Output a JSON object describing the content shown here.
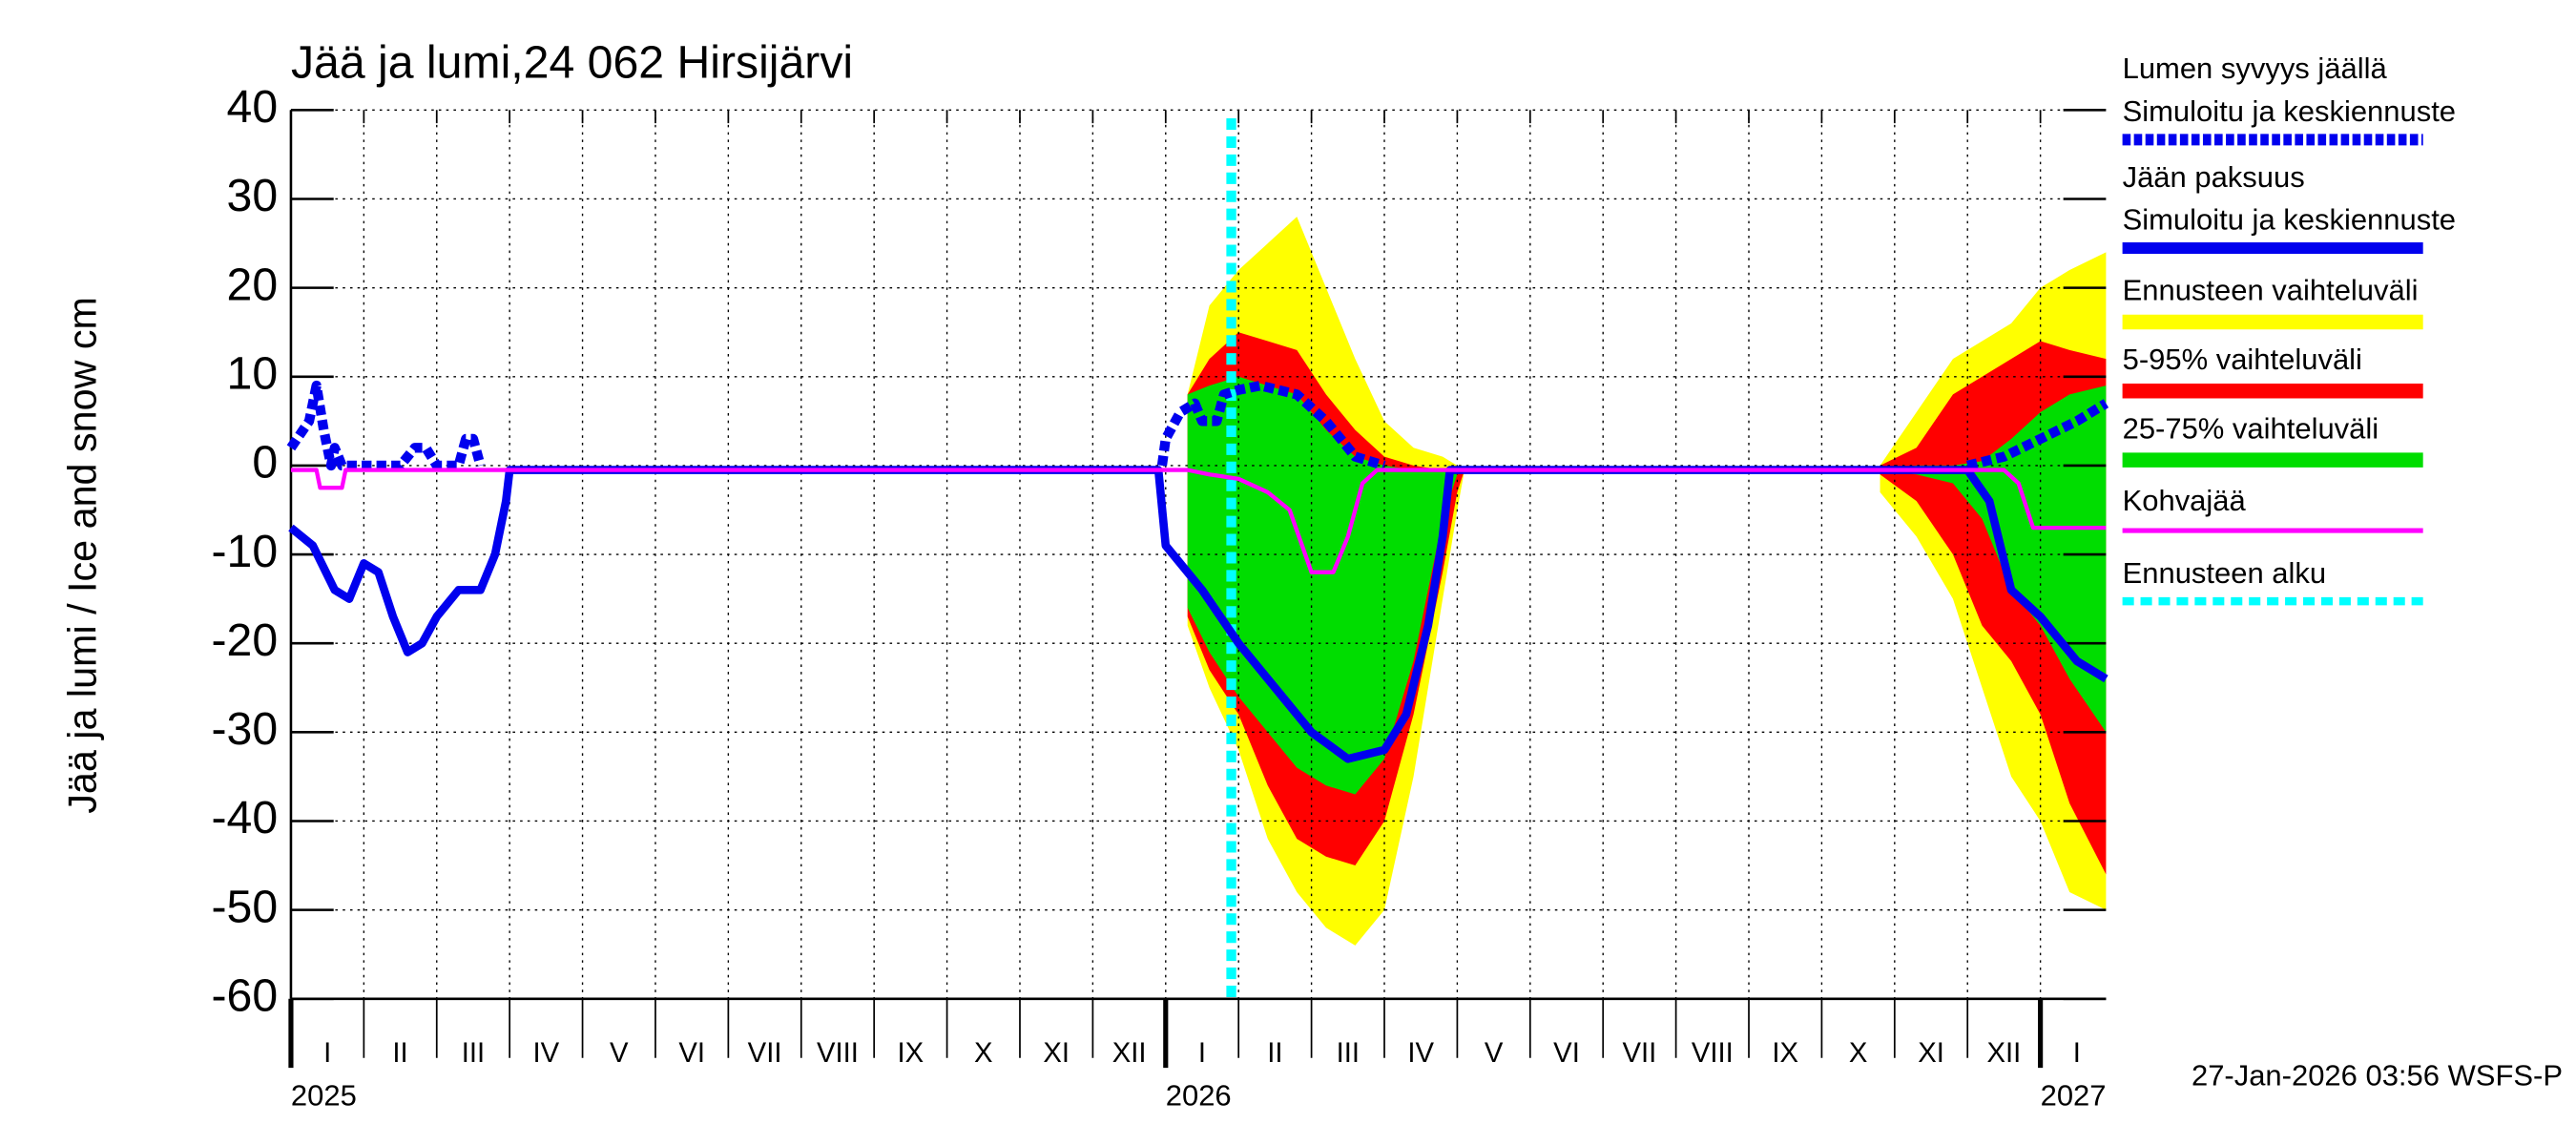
{
  "chart_data": {
    "type": "line",
    "title": "Jää ja lumi,24 062 Hirsijärvi",
    "y_label": "Jää ja lumi / Ice and snow    cm",
    "footer": "27-Jan-2026 03:56 WSFS-P",
    "ylim": [
      -60,
      40
    ],
    "yticks": [
      -60,
      -50,
      -40,
      -30,
      -20,
      -10,
      0,
      10,
      20,
      30,
      40
    ],
    "xlim": [
      0,
      24.9
    ],
    "xticks": [
      {
        "value": 0,
        "label": "I"
      },
      {
        "value": 1,
        "label": "II"
      },
      {
        "value": 2,
        "label": "III"
      },
      {
        "value": 3,
        "label": "IV"
      },
      {
        "value": 4,
        "label": "V"
      },
      {
        "value": 5,
        "label": "VI"
      },
      {
        "value": 6,
        "label": "VII"
      },
      {
        "value": 7,
        "label": "VIII"
      },
      {
        "value": 8,
        "label": "IX"
      },
      {
        "value": 9,
        "label": "X"
      },
      {
        "value": 10,
        "label": "XI"
      },
      {
        "value": 11,
        "label": "XII"
      },
      {
        "value": 12,
        "label": "I"
      },
      {
        "value": 13,
        "label": "II"
      },
      {
        "value": 14,
        "label": "III"
      },
      {
        "value": 15,
        "label": "IV"
      },
      {
        "value": 16,
        "label": "V"
      },
      {
        "value": 17,
        "label": "VI"
      },
      {
        "value": 18,
        "label": "VII"
      },
      {
        "value": 19,
        "label": "VIII"
      },
      {
        "value": 20,
        "label": "IX"
      },
      {
        "value": 21,
        "label": "X"
      },
      {
        "value": 22,
        "label": "XI"
      },
      {
        "value": 23,
        "label": "XII"
      },
      {
        "value": 24,
        "label": "I"
      }
    ],
    "year_labels": [
      {
        "value": 0,
        "label": "2025"
      },
      {
        "value": 12,
        "label": "2026"
      },
      {
        "value": 24,
        "label": "2027"
      }
    ],
    "grid": true,
    "bands": [
      {
        "name": "Ennusteen vaihteluväli",
        "color": "#ffff00",
        "pieces": [
          {
            "x": [
              12.3,
              12.6,
              13.0,
              13.4,
              13.8,
              14.2,
              14.6,
              15.0,
              15.4,
              15.8,
              16.0,
              16.1
            ],
            "upper": [
              8,
              18,
              22,
              25,
              28,
              20,
              12,
              5,
              2,
              1,
              0,
              -0.5
            ],
            "lower": [
              -18,
              -25,
              -32,
              -42,
              -48,
              -52,
              -54,
              -50,
              -35,
              -15,
              -5,
              -0.5
            ]
          },
          {
            "x": [
              21.8,
              22.3,
              22.8,
              23.2,
              23.6,
              24.0,
              24.4,
              24.9
            ],
            "upper": [
              0,
              6,
              12,
              14,
              16,
              20,
              22,
              24
            ],
            "lower": [
              -3,
              -8,
              -15,
              -25,
              -35,
              -40,
              -48,
              -50
            ]
          }
        ]
      },
      {
        "name": "5-95% vaihteluväli",
        "color": "#ff0000",
        "pieces": [
          {
            "x": [
              12.3,
              12.6,
              13.0,
              13.4,
              13.8,
              14.2,
              14.6,
              15.0,
              15.4,
              15.8,
              16.0,
              16.1
            ],
            "upper": [
              8,
              12,
              15,
              14,
              13,
              8,
              4,
              1,
              0,
              -0.5,
              -0.5,
              -0.5
            ],
            "lower": [
              -17,
              -23,
              -28,
              -36,
              -42,
              -44,
              -45,
              -40,
              -28,
              -12,
              -3,
              -0.5
            ]
          },
          {
            "x": [
              21.8,
              22.3,
              22.8,
              23.2,
              23.6,
              24.0,
              24.4,
              24.9
            ],
            "upper": [
              0,
              2,
              8,
              10,
              12,
              14,
              13,
              12
            ],
            "lower": [
              -1,
              -4,
              -10,
              -18,
              -22,
              -28,
              -38,
              -46
            ]
          }
        ]
      },
      {
        "name": "25-75% vaihteluväli",
        "color": "#00dd00",
        "pieces": [
          {
            "x": [
              12.3,
              12.6,
              13.0,
              13.4,
              13.8,
              14.2,
              14.6,
              15.0,
              15.4,
              15.8,
              16.0,
              16.1
            ],
            "upper": [
              8,
              9,
              10,
              9,
              8,
              4,
              1,
              0,
              -0.5,
              -0.5,
              -0.5,
              -0.5
            ],
            "lower": [
              -16,
              -21,
              -26,
              -30,
              -34,
              -36,
              -37,
              -33,
              -22,
              -6,
              -1,
              -0.5
            ]
          },
          {
            "x": [
              21.8,
              22.3,
              22.8,
              23.2,
              23.6,
              24.0,
              24.4,
              24.9
            ],
            "upper": [
              -0.5,
              0,
              0,
              0.5,
              3,
              6,
              8,
              9
            ],
            "lower": [
              -0.5,
              -1,
              -2,
              -6,
              -14,
              -18,
              -24,
              -30
            ]
          }
        ]
      }
    ],
    "series": [
      {
        "name": "Lumen syvyys jäällä",
        "subname": "Simuloitu ja keskiennuste",
        "color": "#0000ee",
        "style": "dotted",
        "x": [
          0,
          0.25,
          0.35,
          0.45,
          0.55,
          0.6,
          0.7,
          1.5,
          1.7,
          1.85,
          2.0,
          2.3,
          2.4,
          2.5,
          2.6,
          7,
          11.95,
          12.0,
          12.2,
          12.4,
          12.5,
          12.7,
          12.8,
          13.0,
          13.3,
          13.8,
          14.2,
          14.6,
          15.0,
          19,
          23.0,
          23.5,
          24.0,
          24.5,
          24.9
        ],
        "values": [
          2,
          5,
          9,
          4,
          0,
          2,
          0,
          0,
          2,
          2,
          0,
          0,
          3,
          3,
          0,
          null,
          0,
          3,
          6,
          7,
          5,
          5,
          8,
          8.5,
          9,
          8,
          5,
          1,
          0,
          null,
          0,
          1,
          3,
          5,
          7
        ]
      },
      {
        "name": "Jään paksuus",
        "subname": "Simuloitu ja keskiennuste",
        "color": "#0000ee",
        "style": "solid",
        "x": [
          0,
          0.3,
          0.6,
          0.8,
          1.0,
          1.2,
          1.4,
          1.6,
          1.8,
          2.0,
          2.3,
          2.6,
          2.8,
          2.95,
          3.0,
          11.9,
          12.0,
          12.5,
          13.0,
          13.5,
          14.0,
          14.5,
          15.0,
          15.3,
          15.6,
          15.8,
          15.9,
          23.0,
          23.3,
          23.6,
          24.0,
          24.5,
          24.9
        ],
        "values": [
          -7,
          -9,
          -14,
          -15,
          -11,
          -12,
          -17,
          -21,
          -20,
          -17,
          -14,
          -14,
          -10,
          -4,
          -0.5,
          -0.5,
          -9,
          -14,
          -20,
          -25,
          -30,
          -33,
          -32,
          -28,
          -18,
          -8,
          -0.5,
          -0.5,
          -4,
          -14,
          -17,
          -22,
          -24
        ]
      },
      {
        "name": "Kohvajää",
        "color": "#ff00ff",
        "style": "thin",
        "x": [
          0,
          0.35,
          0.4,
          0.7,
          0.75,
          12.3,
          12.6,
          13.0,
          13.4,
          13.7,
          14.0,
          14.3,
          14.5,
          14.7,
          14.9,
          23.5,
          23.7,
          23.9,
          24.9
        ],
        "values": [
          -0.5,
          -0.5,
          -2.5,
          -2.5,
          -0.5,
          -0.5,
          -1,
          -1.5,
          -3,
          -5,
          -12,
          -12,
          -8,
          -2,
          -0.5,
          -0.5,
          -2,
          -7,
          -7
        ]
      }
    ],
    "forecast_start": {
      "name": "Ennusteen alku",
      "x": 12.9,
      "color": "#00ffff"
    }
  }
}
